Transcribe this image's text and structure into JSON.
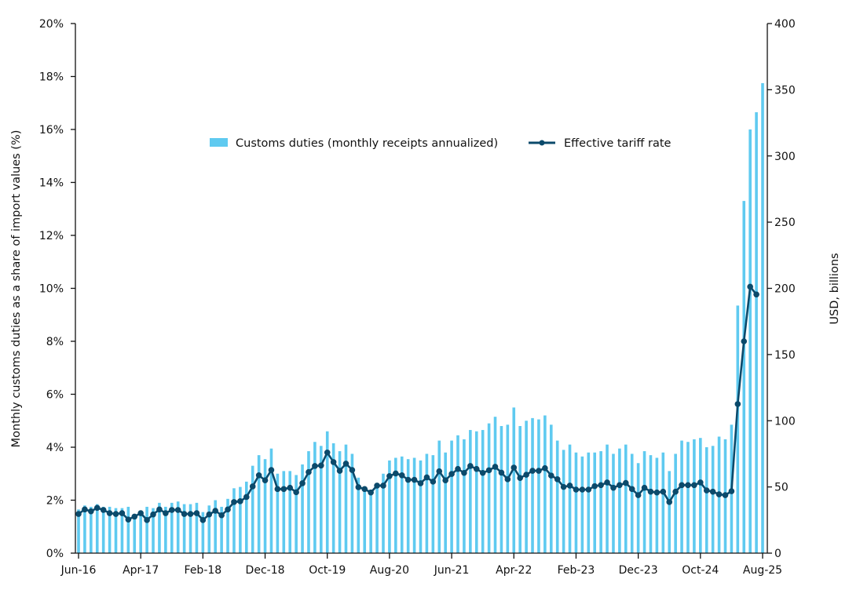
{
  "chart_data": {
    "type": "bar+line",
    "title": "",
    "legend": {
      "placement": "top-center",
      "entries": [
        "Customs duties (monthly receipts annualized)",
        "Effective tariff rate"
      ]
    },
    "y_left": {
      "label": "Monthly customs duties as a share of import values (%)",
      "range": [
        0,
        20
      ],
      "ticks": [
        "0%",
        "2%",
        "4%",
        "6%",
        "8%",
        "10%",
        "12%",
        "14%",
        "16%",
        "18%",
        "20%"
      ]
    },
    "y_right": {
      "label": "USD, billions",
      "range": [
        0,
        400
      ],
      "ticks": [
        "0",
        "50",
        "100",
        "150",
        "200",
        "250",
        "300",
        "350",
        "400"
      ]
    },
    "x_ticks": [
      "Jun-16",
      "Apr-17",
      "Feb-18",
      "Dec-18",
      "Oct-19",
      "Aug-20",
      "Jun-21",
      "Apr-22",
      "Feb-23",
      "Dec-23",
      "Oct-24",
      "Aug-25"
    ],
    "grid": false,
    "colors": {
      "bars": "#5FCAF0",
      "line": "#0B4A6B"
    },
    "categories": [
      "Jun-16",
      "Jul-16",
      "Aug-16",
      "Sep-16",
      "Oct-16",
      "Nov-16",
      "Dec-16",
      "Jan-17",
      "Feb-17",
      "Mar-17",
      "Apr-17",
      "May-17",
      "Jun-17",
      "Jul-17",
      "Aug-17",
      "Sep-17",
      "Oct-17",
      "Nov-17",
      "Dec-17",
      "Jan-18",
      "Feb-18",
      "Mar-18",
      "Apr-18",
      "May-18",
      "Jun-18",
      "Jul-18",
      "Aug-18",
      "Sep-18",
      "Oct-18",
      "Nov-18",
      "Dec-18",
      "Jan-19",
      "Feb-19",
      "Mar-19",
      "Apr-19",
      "May-19",
      "Jun-19",
      "Jul-19",
      "Aug-19",
      "Sep-19",
      "Oct-19",
      "Nov-19",
      "Dec-19",
      "Jan-20",
      "Feb-20",
      "Mar-20",
      "Apr-20",
      "May-20",
      "Jun-20",
      "Jul-20",
      "Aug-20",
      "Sep-20",
      "Oct-20",
      "Nov-20",
      "Dec-20",
      "Jan-21",
      "Feb-21",
      "Mar-21",
      "Apr-21",
      "May-21",
      "Jun-21",
      "Jul-21",
      "Aug-21",
      "Sep-21",
      "Oct-21",
      "Nov-21",
      "Dec-21",
      "Jan-22",
      "Feb-22",
      "Mar-22",
      "Apr-22",
      "May-22",
      "Jun-22",
      "Jul-22",
      "Aug-22",
      "Sep-22",
      "Oct-22",
      "Nov-22",
      "Dec-22",
      "Jan-23",
      "Feb-23",
      "Mar-23",
      "Apr-23",
      "May-23",
      "Jun-23",
      "Jul-23",
      "Aug-23",
      "Sep-23",
      "Oct-23",
      "Nov-23",
      "Dec-23",
      "Jan-24",
      "Feb-24",
      "Mar-24",
      "Apr-24",
      "May-24",
      "Jun-24",
      "Jul-24",
      "Aug-24",
      "Sep-24",
      "Oct-24",
      "Nov-24",
      "Dec-24",
      "Jan-25",
      "Feb-25",
      "Mar-25",
      "Apr-25",
      "May-25",
      "Jun-25",
      "Jul-25",
      "Aug-25"
    ],
    "series": [
      {
        "name": "Customs duties (monthly receipts annualized)",
        "axis": "right",
        "type": "bar",
        "values": [
          33,
          36,
          35,
          37,
          35,
          35,
          34,
          34,
          35,
          29,
          31,
          35,
          34,
          38,
          35,
          38,
          39,
          37,
          37,
          38,
          31,
          36,
          40,
          35,
          41,
          49,
          50,
          54,
          66,
          74,
          71,
          79,
          60,
          62,
          62,
          59,
          67,
          77,
          84,
          81,
          92,
          83,
          77,
          82,
          75,
          57,
          49,
          48,
          52,
          60,
          70,
          72,
          73,
          71,
          72,
          70,
          75,
          74,
          85,
          76,
          85,
          89,
          86,
          93,
          92,
          93,
          98,
          103,
          96,
          97,
          110,
          96,
          100,
          102,
          101,
          104,
          97,
          85,
          78,
          82,
          76,
          73,
          76,
          76,
          77,
          82,
          75,
          79,
          82,
          75,
          68,
          77,
          74,
          72,
          76,
          62,
          75,
          85,
          84,
          86,
          87,
          80,
          81,
          88,
          86,
          97,
          187,
          266,
          320,
          333,
          355
        ]
      },
      {
        "name": "Effective tariff rate",
        "axis": "left",
        "type": "line",
        "values": [
          1.48,
          1.65,
          1.58,
          1.71,
          1.63,
          1.51,
          1.48,
          1.51,
          1.27,
          1.38,
          1.51,
          1.25,
          1.46,
          1.65,
          1.51,
          1.63,
          1.63,
          1.48,
          1.48,
          1.51,
          1.25,
          1.46,
          1.6,
          1.43,
          1.65,
          1.93,
          1.96,
          2.12,
          2.52,
          2.94,
          2.75,
          3.14,
          2.42,
          2.42,
          2.47,
          2.3,
          2.64,
          3.06,
          3.29,
          3.31,
          3.8,
          3.44,
          3.11,
          3.38,
          3.14,
          2.49,
          2.42,
          2.29,
          2.55,
          2.55,
          2.91,
          3.01,
          2.94,
          2.77,
          2.77,
          2.64,
          2.86,
          2.7,
          3.09,
          2.75,
          2.99,
          3.18,
          3.03,
          3.29,
          3.18,
          3.03,
          3.13,
          3.26,
          3.04,
          2.79,
          3.23,
          2.84,
          2.96,
          3.11,
          3.11,
          3.21,
          2.93,
          2.79,
          2.5,
          2.55,
          2.4,
          2.4,
          2.4,
          2.53,
          2.57,
          2.67,
          2.47,
          2.57,
          2.65,
          2.42,
          2.19,
          2.47,
          2.32,
          2.29,
          2.32,
          1.93,
          2.32,
          2.57,
          2.57,
          2.57,
          2.67,
          2.37,
          2.32,
          2.22,
          2.19,
          2.34,
          5.63,
          8.0,
          10.06,
          9.77,
          null
        ]
      }
    ]
  }
}
